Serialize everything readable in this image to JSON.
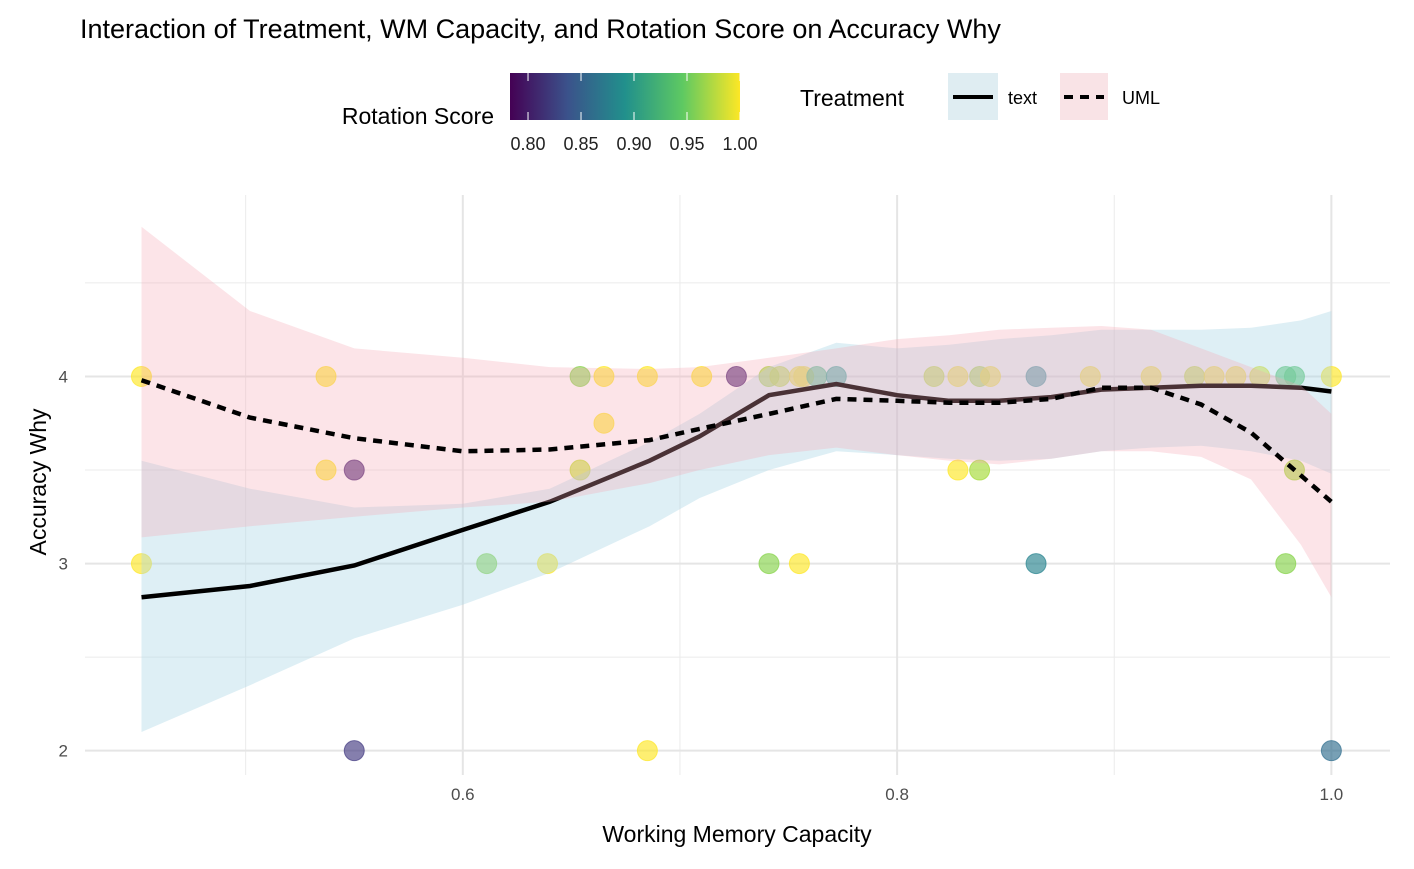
{
  "chart_data": {
    "type": "scatter",
    "title": "Interaction of Treatment, WM Capacity, and Rotation Score on Accuracy Why",
    "xlabel": "Working Memory Capacity",
    "ylabel": "Accuracy Why",
    "xlim": [
      0.426,
      1.027
    ],
    "ylim": [
      1.87,
      4.97
    ],
    "x_ticks": [
      0.6,
      0.8,
      1.0
    ],
    "x_tick_labels": [
      "0.6",
      "0.8",
      "1.0"
    ],
    "y_ticks": [
      2,
      3,
      4
    ],
    "y_tick_labels": [
      "2",
      "3",
      "4"
    ],
    "grid": true,
    "legend_position": "top",
    "color_legend": {
      "title": "Rotation Score",
      "range": [
        0.783,
        1.0
      ],
      "ticks": [
        0.8,
        0.85,
        0.9,
        0.95,
        1.0
      ],
      "tick_labels": [
        "0.80",
        "0.85",
        "0.90",
        "0.95",
        "1.00"
      ],
      "palette": "viridis"
    },
    "linetype_legend": {
      "title": "Treatment",
      "entries": [
        {
          "label": "text",
          "linetype": "solid",
          "fill": "#add8e6"
        },
        {
          "label": "UML",
          "linetype": "dashed",
          "fill": "#f4a6b4"
        }
      ]
    },
    "points": [
      {
        "x": 0.452,
        "y": 4,
        "rotation": 1.0
      },
      {
        "x": 0.452,
        "y": 3,
        "rotation": 1.0
      },
      {
        "x": 0.537,
        "y": 4,
        "rotation": 1.0
      },
      {
        "x": 0.537,
        "y": 3.5,
        "rotation": 1.0
      },
      {
        "x": 0.55,
        "y": 3.5,
        "rotation": 0.8
      },
      {
        "x": 0.55,
        "y": 2,
        "rotation": 0.82
      },
      {
        "x": 0.611,
        "y": 3,
        "rotation": 0.96
      },
      {
        "x": 0.639,
        "y": 3,
        "rotation": 1.0
      },
      {
        "x": 0.654,
        "y": 4,
        "rotation": 0.96
      },
      {
        "x": 0.654,
        "y": 3.5,
        "rotation": 0.98
      },
      {
        "x": 0.665,
        "y": 4,
        "rotation": 1.0
      },
      {
        "x": 0.665,
        "y": 3.75,
        "rotation": 1.0
      },
      {
        "x": 0.685,
        "y": 4,
        "rotation": 1.0
      },
      {
        "x": 0.685,
        "y": 2,
        "rotation": 1.0
      },
      {
        "x": 0.71,
        "y": 4,
        "rotation": 1.0
      },
      {
        "x": 0.726,
        "y": 4,
        "rotation": 0.8
      },
      {
        "x": 0.741,
        "y": 4,
        "rotation": 0.97
      },
      {
        "x": 0.746,
        "y": 4,
        "rotation": 0.98
      },
      {
        "x": 0.741,
        "y": 3,
        "rotation": 0.96
      },
      {
        "x": 0.755,
        "y": 4,
        "rotation": 1.0
      },
      {
        "x": 0.757,
        "y": 4,
        "rotation": 1.0
      },
      {
        "x": 0.755,
        "y": 3,
        "rotation": 1.0
      },
      {
        "x": 0.763,
        "y": 4,
        "rotation": 0.93
      },
      {
        "x": 0.772,
        "y": 4,
        "rotation": 0.9
      },
      {
        "x": 0.817,
        "y": 4,
        "rotation": 0.98
      },
      {
        "x": 0.828,
        "y": 4,
        "rotation": 1.0
      },
      {
        "x": 0.828,
        "y": 3.5,
        "rotation": 1.0
      },
      {
        "x": 0.838,
        "y": 4,
        "rotation": 0.97
      },
      {
        "x": 0.838,
        "y": 3.5,
        "rotation": 0.97
      },
      {
        "x": 0.843,
        "y": 4,
        "rotation": 1.0
      },
      {
        "x": 0.864,
        "y": 4,
        "rotation": 0.88
      },
      {
        "x": 0.864,
        "y": 3,
        "rotation": 0.88
      },
      {
        "x": 0.889,
        "y": 4,
        "rotation": 1.0
      },
      {
        "x": 0.917,
        "y": 4,
        "rotation": 1.0
      },
      {
        "x": 0.937,
        "y": 4,
        "rotation": 0.98
      },
      {
        "x": 0.946,
        "y": 4,
        "rotation": 1.0
      },
      {
        "x": 0.956,
        "y": 4,
        "rotation": 1.0
      },
      {
        "x": 0.967,
        "y": 4,
        "rotation": 0.99
      },
      {
        "x": 0.979,
        "y": 4,
        "rotation": 0.94
      },
      {
        "x": 0.983,
        "y": 4,
        "rotation": 0.94
      },
      {
        "x": 0.979,
        "y": 3,
        "rotation": 0.96
      },
      {
        "x": 0.983,
        "y": 3.5,
        "rotation": 0.97
      },
      {
        "x": 1.0,
        "y": 4,
        "rotation": 1.0
      },
      {
        "x": 1.0,
        "y": 2,
        "rotation": 0.86
      }
    ],
    "smooth": {
      "x": [
        0.452,
        0.502,
        0.55,
        0.6,
        0.64,
        0.686,
        0.709,
        0.741,
        0.772,
        0.8,
        0.824,
        0.847,
        0.871,
        0.894,
        0.917,
        0.94,
        0.963,
        0.986,
        1.0
      ],
      "series": [
        {
          "name": "text",
          "fit": [
            2.82,
            2.88,
            2.99,
            3.18,
            3.33,
            3.55,
            3.68,
            3.9,
            3.96,
            3.9,
            3.87,
            3.87,
            3.89,
            3.93,
            3.94,
            3.95,
            3.95,
            3.94,
            3.92
          ],
          "lower": [
            2.1,
            2.35,
            2.6,
            2.78,
            2.95,
            3.2,
            3.35,
            3.5,
            3.6,
            3.58,
            3.56,
            3.55,
            3.56,
            3.6,
            3.62,
            3.63,
            3.6,
            3.55,
            3.48
          ],
          "upper": [
            3.55,
            3.4,
            3.3,
            3.32,
            3.4,
            3.65,
            3.8,
            4.05,
            4.18,
            4.15,
            4.17,
            4.2,
            4.22,
            4.25,
            4.25,
            4.25,
            4.26,
            4.3,
            4.35
          ]
        },
        {
          "name": "UML",
          "fit": [
            3.98,
            3.78,
            3.67,
            3.6,
            3.61,
            3.66,
            3.72,
            3.8,
            3.88,
            3.87,
            3.86,
            3.86,
            3.88,
            3.94,
            3.94,
            3.85,
            3.7,
            3.47,
            3.33
          ],
          "lower": [
            3.14,
            3.2,
            3.25,
            3.3,
            3.33,
            3.43,
            3.5,
            3.58,
            3.62,
            3.58,
            3.55,
            3.53,
            3.56,
            3.6,
            3.6,
            3.57,
            3.45,
            3.1,
            2.82
          ],
          "upper": [
            4.8,
            4.35,
            4.15,
            4.1,
            4.05,
            4.04,
            4.05,
            4.1,
            4.15,
            4.2,
            4.22,
            4.25,
            4.26,
            4.27,
            4.25,
            4.15,
            4.05,
            3.95,
            3.8
          ]
        }
      ]
    }
  }
}
